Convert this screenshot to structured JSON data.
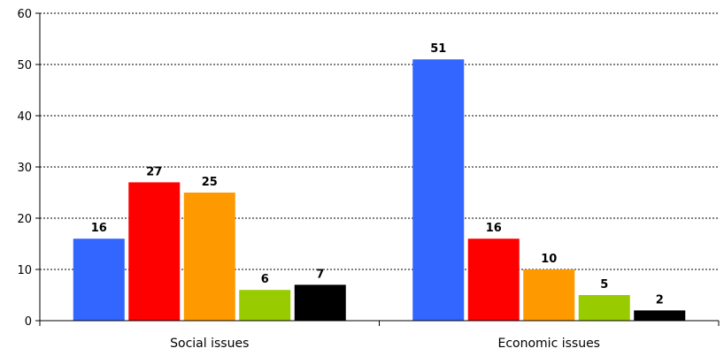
{
  "chart_data": {
    "type": "bar",
    "categories": [
      "Social issues",
      "Economic issues"
    ],
    "series": [
      {
        "color": "#3366FF",
        "values": [
          16,
          51
        ]
      },
      {
        "color": "#FF0000",
        "values": [
          27,
          16
        ]
      },
      {
        "color": "#FF9900",
        "values": [
          25,
          10
        ]
      },
      {
        "color": "#99CC00",
        "values": [
          6,
          5
        ]
      },
      {
        "color": "#000000",
        "values": [
          7,
          2
        ]
      }
    ],
    "title": "",
    "xlabel": "",
    "ylabel": "",
    "ylim": [
      0,
      60
    ],
    "yticks": [
      "0",
      "10",
      "20",
      "30",
      "40",
      "50",
      "60"
    ],
    "grid": true,
    "legend": "none"
  }
}
